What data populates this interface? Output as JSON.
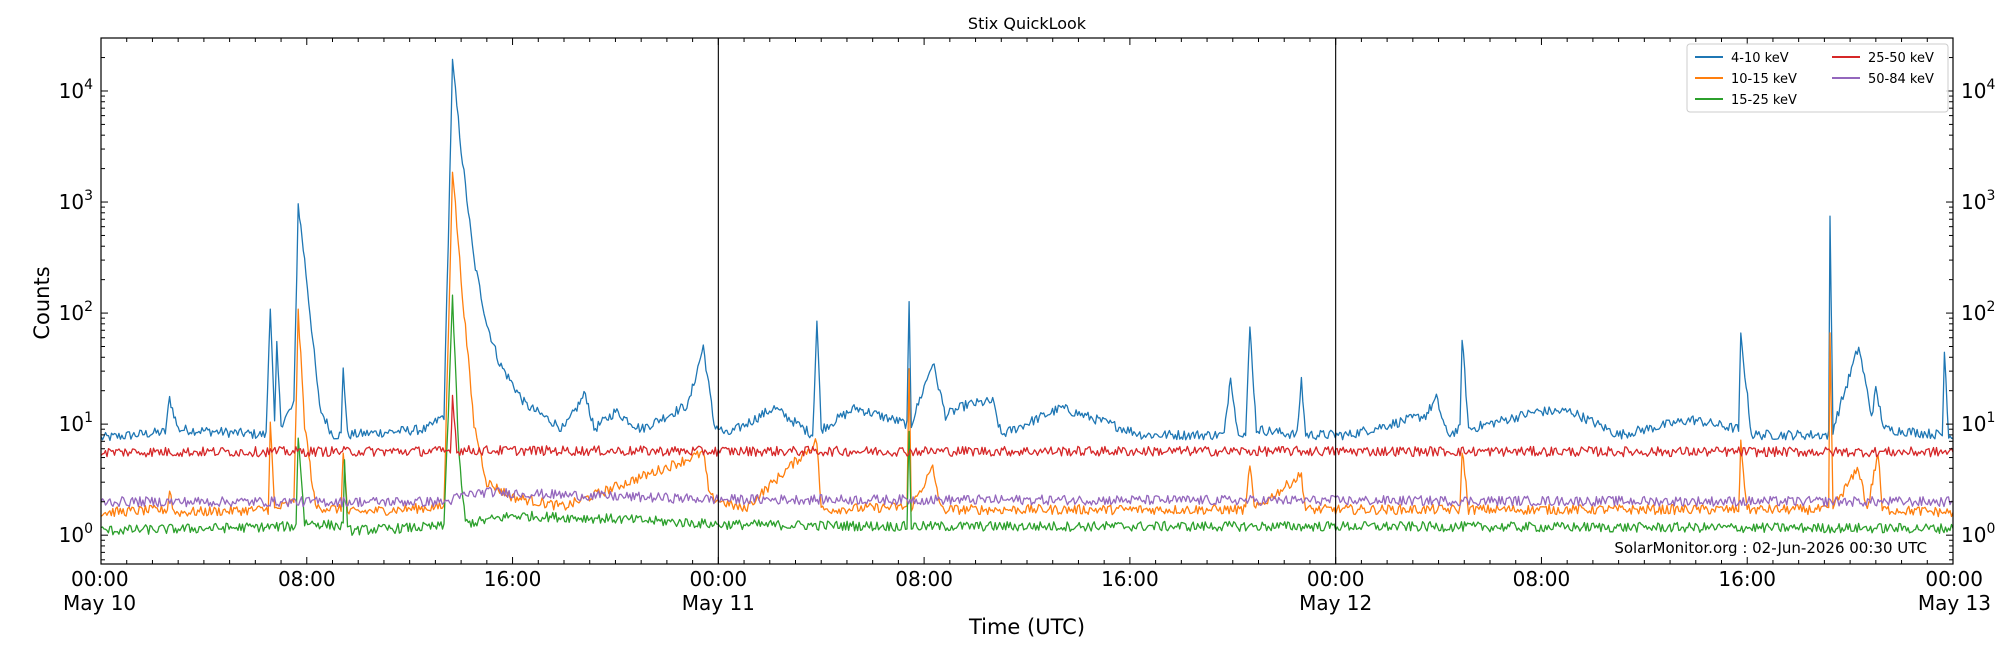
{
  "chart_data": {
    "type": "line",
    "title": "Stix QuickLook",
    "xlabel": "Time (UTC)",
    "ylabel": "Counts",
    "yscale": "log",
    "ylim": [
      0.55,
      30000
    ],
    "xlim": [
      "2026-05-10 00:00",
      "2026-05-13 00:00"
    ],
    "grid": false,
    "legend_position": "top-right",
    "x_ticks": [
      {
        "time": "2026-05-10 00:00",
        "label": "00:00",
        "date_label": "May 10"
      },
      {
        "time": "2026-05-10 08:00",
        "label": "08:00",
        "date_label": ""
      },
      {
        "time": "2026-05-10 16:00",
        "label": "16:00",
        "date_label": ""
      },
      {
        "time": "2026-05-11 00:00",
        "label": "00:00",
        "date_label": "May 11"
      },
      {
        "time": "2026-05-11 08:00",
        "label": "08:00",
        "date_label": ""
      },
      {
        "time": "2026-05-11 16:00",
        "label": "16:00",
        "date_label": ""
      },
      {
        "time": "2026-05-12 00:00",
        "label": "00:00",
        "date_label": "May 12"
      },
      {
        "time": "2026-05-12 08:00",
        "label": "08:00",
        "date_label": ""
      },
      {
        "time": "2026-05-12 16:00",
        "label": "16:00",
        "date_label": ""
      },
      {
        "time": "2026-05-13 00:00",
        "label": "00:00",
        "date_label": "May 13"
      }
    ],
    "y_ticks": [
      {
        "value": 1,
        "base": "10",
        "exp": "0"
      },
      {
        "value": 10,
        "base": "10",
        "exp": "1"
      },
      {
        "value": 100,
        "base": "10",
        "exp": "2"
      },
      {
        "value": 1000,
        "base": "10",
        "exp": "3"
      },
      {
        "value": 10000,
        "base": "10",
        "exp": "4"
      }
    ],
    "day_boundaries": [
      "2026-05-11 00:00",
      "2026-05-12 00:00"
    ],
    "series": [
      {
        "name": "4-10 keV",
        "color": "#1f77b4",
        "points": [
          [
            "2026-05-10 00:00",
            7.5
          ],
          [
            "2026-05-10 02:30",
            8.5
          ],
          [
            "2026-05-10 02:40",
            17
          ],
          [
            "2026-05-10 03:00",
            9
          ],
          [
            "2026-05-10 06:25",
            8
          ],
          [
            "2026-05-10 06:35",
            120
          ],
          [
            "2026-05-10 06:45",
            10
          ],
          [
            "2026-05-10 06:50",
            50
          ],
          [
            "2026-05-10 07:00",
            10
          ],
          [
            "2026-05-10 07:30",
            15
          ],
          [
            "2026-05-10 07:40",
            950
          ],
          [
            "2026-05-10 07:55",
            300
          ],
          [
            "2026-05-10 08:30",
            14
          ],
          [
            "2026-05-10 09:00",
            8
          ],
          [
            "2026-05-10 09:20",
            8
          ],
          [
            "2026-05-10 09:25",
            33
          ],
          [
            "2026-05-10 09:35",
            8
          ],
          [
            "2026-05-10 12:40",
            9
          ],
          [
            "2026-05-10 13:20",
            12
          ],
          [
            "2026-05-10 13:40",
            18000
          ],
          [
            "2026-05-10 14:00",
            3000
          ],
          [
            "2026-05-10 14:30",
            300
          ],
          [
            "2026-05-10 15:00",
            80
          ],
          [
            "2026-05-10 15:30",
            35
          ],
          [
            "2026-05-10 16:30",
            15
          ],
          [
            "2026-05-10 18:00",
            9
          ],
          [
            "2026-05-10 18:50",
            19
          ],
          [
            "2026-05-10 19:10",
            9
          ],
          [
            "2026-05-10 20:00",
            13
          ],
          [
            "2026-05-10 21:00",
            9
          ],
          [
            "2026-05-10 22:50",
            15
          ],
          [
            "2026-05-10 23:25",
            50
          ],
          [
            "2026-05-10 23:50",
            10
          ],
          [
            "2026-05-11 00:20",
            8
          ],
          [
            "2026-05-11 02:10",
            14
          ],
          [
            "2026-05-11 03:40",
            8
          ],
          [
            "2026-05-11 03:50",
            85
          ],
          [
            "2026-05-11 04:00",
            9
          ],
          [
            "2026-05-11 05:20",
            14
          ],
          [
            "2026-05-11 07:20",
            10
          ],
          [
            "2026-05-11 07:25",
            120
          ],
          [
            "2026-05-11 07:30",
            10
          ],
          [
            "2026-05-11 08:20",
            36
          ],
          [
            "2026-05-11 08:50",
            12
          ],
          [
            "2026-05-11 09:40",
            15
          ],
          [
            "2026-05-11 10:40",
            16
          ],
          [
            "2026-05-11 11:00",
            8
          ],
          [
            "2026-05-11 13:20",
            14
          ],
          [
            "2026-05-11 16:30",
            8
          ],
          [
            "2026-05-11 19:40",
            8
          ],
          [
            "2026-05-11 19:55",
            28
          ],
          [
            "2026-05-11 20:10",
            9
          ],
          [
            "2026-05-11 20:30",
            8
          ],
          [
            "2026-05-11 20:40",
            75
          ],
          [
            "2026-05-11 20:55",
            9
          ],
          [
            "2026-05-11 22:30",
            8
          ],
          [
            "2026-05-11 22:40",
            25
          ],
          [
            "2026-05-11 22:50",
            8
          ],
          [
            "2026-05-12 00:30",
            8
          ],
          [
            "2026-05-12 03:30",
            12
          ],
          [
            "2026-05-12 03:55",
            17
          ],
          [
            "2026-05-12 04:20",
            8
          ],
          [
            "2026-05-12 04:50",
            9
          ],
          [
            "2026-05-12 04:55",
            62
          ],
          [
            "2026-05-12 05:10",
            9
          ],
          [
            "2026-05-12 07:50",
            13
          ],
          [
            "2026-05-12 09:10",
            13
          ],
          [
            "2026-05-12 11:00",
            8
          ],
          [
            "2026-05-12 13:50",
            11
          ],
          [
            "2026-05-12 15:40",
            9
          ],
          [
            "2026-05-12 15:45",
            62
          ],
          [
            "2026-05-12 16:10",
            8
          ],
          [
            "2026-05-12 19:10",
            8
          ],
          [
            "2026-05-12 19:13",
            700
          ],
          [
            "2026-05-12 19:20",
            9
          ],
          [
            "2026-05-12 20:20",
            50
          ],
          [
            "2026-05-12 20:50",
            12
          ],
          [
            "2026-05-12 21:00",
            20
          ],
          [
            "2026-05-12 21:20",
            9
          ],
          [
            "2026-05-12 23:35",
            8
          ],
          [
            "2026-05-12 23:40",
            45
          ],
          [
            "2026-05-12 23:50",
            8
          ],
          [
            "2026-05-13 00:00",
            7.5
          ]
        ]
      },
      {
        "name": "10-15 keV",
        "color": "#ff7f0e",
        "points": [
          [
            "2026-05-10 00:00",
            1.6
          ],
          [
            "2026-05-10 02:35",
            1.7
          ],
          [
            "2026-05-10 02:40",
            2.6
          ],
          [
            "2026-05-10 02:50",
            1.6
          ],
          [
            "2026-05-10 06:30",
            1.7
          ],
          [
            "2026-05-10 06:35",
            10
          ],
          [
            "2026-05-10 06:45",
            1.7
          ],
          [
            "2026-05-10 07:30",
            2
          ],
          [
            "2026-05-10 07:40",
            100
          ],
          [
            "2026-05-10 07:55",
            10
          ],
          [
            "2026-05-10 08:20",
            1.8
          ],
          [
            "2026-05-10 09:20",
            1.7
          ],
          [
            "2026-05-10 09:25",
            6
          ],
          [
            "2026-05-10 09:35",
            1.6
          ],
          [
            "2026-05-10 13:20",
            1.8
          ],
          [
            "2026-05-10 13:40",
            2000
          ],
          [
            "2026-05-10 14:00",
            200
          ],
          [
            "2026-05-10 14:30",
            10
          ],
          [
            "2026-05-10 15:00",
            3
          ],
          [
            "2026-05-10 16:00",
            2.2
          ],
          [
            "2026-05-10 18:00",
            1.8
          ],
          [
            "2026-05-10 23:25",
            5.5
          ],
          [
            "2026-05-10 23:40",
            2.2
          ],
          [
            "2026-05-11 01:00",
            1.7
          ],
          [
            "2026-05-11 03:50",
            7
          ],
          [
            "2026-05-11 04:00",
            1.7
          ],
          [
            "2026-05-11 07:20",
            1.8
          ],
          [
            "2026-05-11 07:25",
            30
          ],
          [
            "2026-05-11 07:30",
            1.8
          ],
          [
            "2026-05-11 08:20",
            4
          ],
          [
            "2026-05-11 08:40",
            1.7
          ],
          [
            "2026-05-11 20:30",
            1.7
          ],
          [
            "2026-05-11 20:40",
            4.5
          ],
          [
            "2026-05-11 20:50",
            1.7
          ],
          [
            "2026-05-11 22:40",
            3.5
          ],
          [
            "2026-05-11 22:50",
            1.7
          ],
          [
            "2026-05-12 04:50",
            1.7
          ],
          [
            "2026-05-12 04:55",
            6
          ],
          [
            "2026-05-12 05:10",
            1.7
          ],
          [
            "2026-05-12 15:40",
            1.7
          ],
          [
            "2026-05-12 15:45",
            6.5
          ],
          [
            "2026-05-12 16:00",
            1.7
          ],
          [
            "2026-05-12 19:10",
            1.7
          ],
          [
            "2026-05-12 19:13",
            60
          ],
          [
            "2026-05-12 19:20",
            1.8
          ],
          [
            "2026-05-12 20:20",
            4
          ],
          [
            "2026-05-12 20:40",
            1.7
          ],
          [
            "2026-05-12 21:05",
            5.5
          ],
          [
            "2026-05-12 21:15",
            1.7
          ],
          [
            "2026-05-13 00:00",
            1.6
          ]
        ]
      },
      {
        "name": "15-25 keV",
        "color": "#2ca02c",
        "points": [
          [
            "2026-05-10 00:00",
            1.1
          ],
          [
            "2026-05-10 07:35",
            1.2
          ],
          [
            "2026-05-10 07:40",
            8
          ],
          [
            "2026-05-10 07:55",
            1.3
          ],
          [
            "2026-05-10 09:25",
            1.2
          ],
          [
            "2026-05-10 09:28",
            5
          ],
          [
            "2026-05-10 09:35",
            1.1
          ],
          [
            "2026-05-10 13:20",
            1.2
          ],
          [
            "2026-05-10 13:40",
            140
          ],
          [
            "2026-05-10 13:55",
            5
          ],
          [
            "2026-05-10 14:10",
            1.3
          ],
          [
            "2026-05-10 14:30",
            1.3
          ],
          [
            "2026-05-10 16:00",
            1.5
          ],
          [
            "2026-05-10 20:00",
            1.4
          ],
          [
            "2026-05-11 00:00",
            1.25
          ],
          [
            "2026-05-11 07:20",
            1.2
          ],
          [
            "2026-05-11 07:25",
            9
          ],
          [
            "2026-05-11 07:30",
            1.2
          ],
          [
            "2026-05-12 00:00",
            1.2
          ],
          [
            "2026-05-13 00:00",
            1.15
          ]
        ]
      },
      {
        "name": "25-50 keV",
        "color": "#d62728",
        "points": [
          [
            "2026-05-10 00:00",
            5.6
          ],
          [
            "2026-05-10 13:35",
            5.7
          ],
          [
            "2026-05-10 13:40",
            18
          ],
          [
            "2026-05-10 13:50",
            5.8
          ],
          [
            "2026-05-11 00:00",
            5.7
          ],
          [
            "2026-05-12 00:00",
            5.7
          ],
          [
            "2026-05-13 00:00",
            5.6
          ]
        ]
      },
      {
        "name": "50-84 keV",
        "color": "#9467bd",
        "points": [
          [
            "2026-05-10 00:00",
            2.0
          ],
          [
            "2026-05-10 13:30",
            2.0
          ],
          [
            "2026-05-10 13:40",
            2.1
          ],
          [
            "2026-05-10 14:10",
            2.3
          ],
          [
            "2026-05-10 15:00",
            2.45
          ],
          [
            "2026-05-10 18:00",
            2.3
          ],
          [
            "2026-05-11 00:00",
            2.1
          ],
          [
            "2026-05-12 00:00",
            2.05
          ],
          [
            "2026-05-13 00:00",
            2.0
          ]
        ]
      }
    ]
  },
  "watermark": "SolarMonitor.org : 02-Jun-2026 00:30 UTC"
}
